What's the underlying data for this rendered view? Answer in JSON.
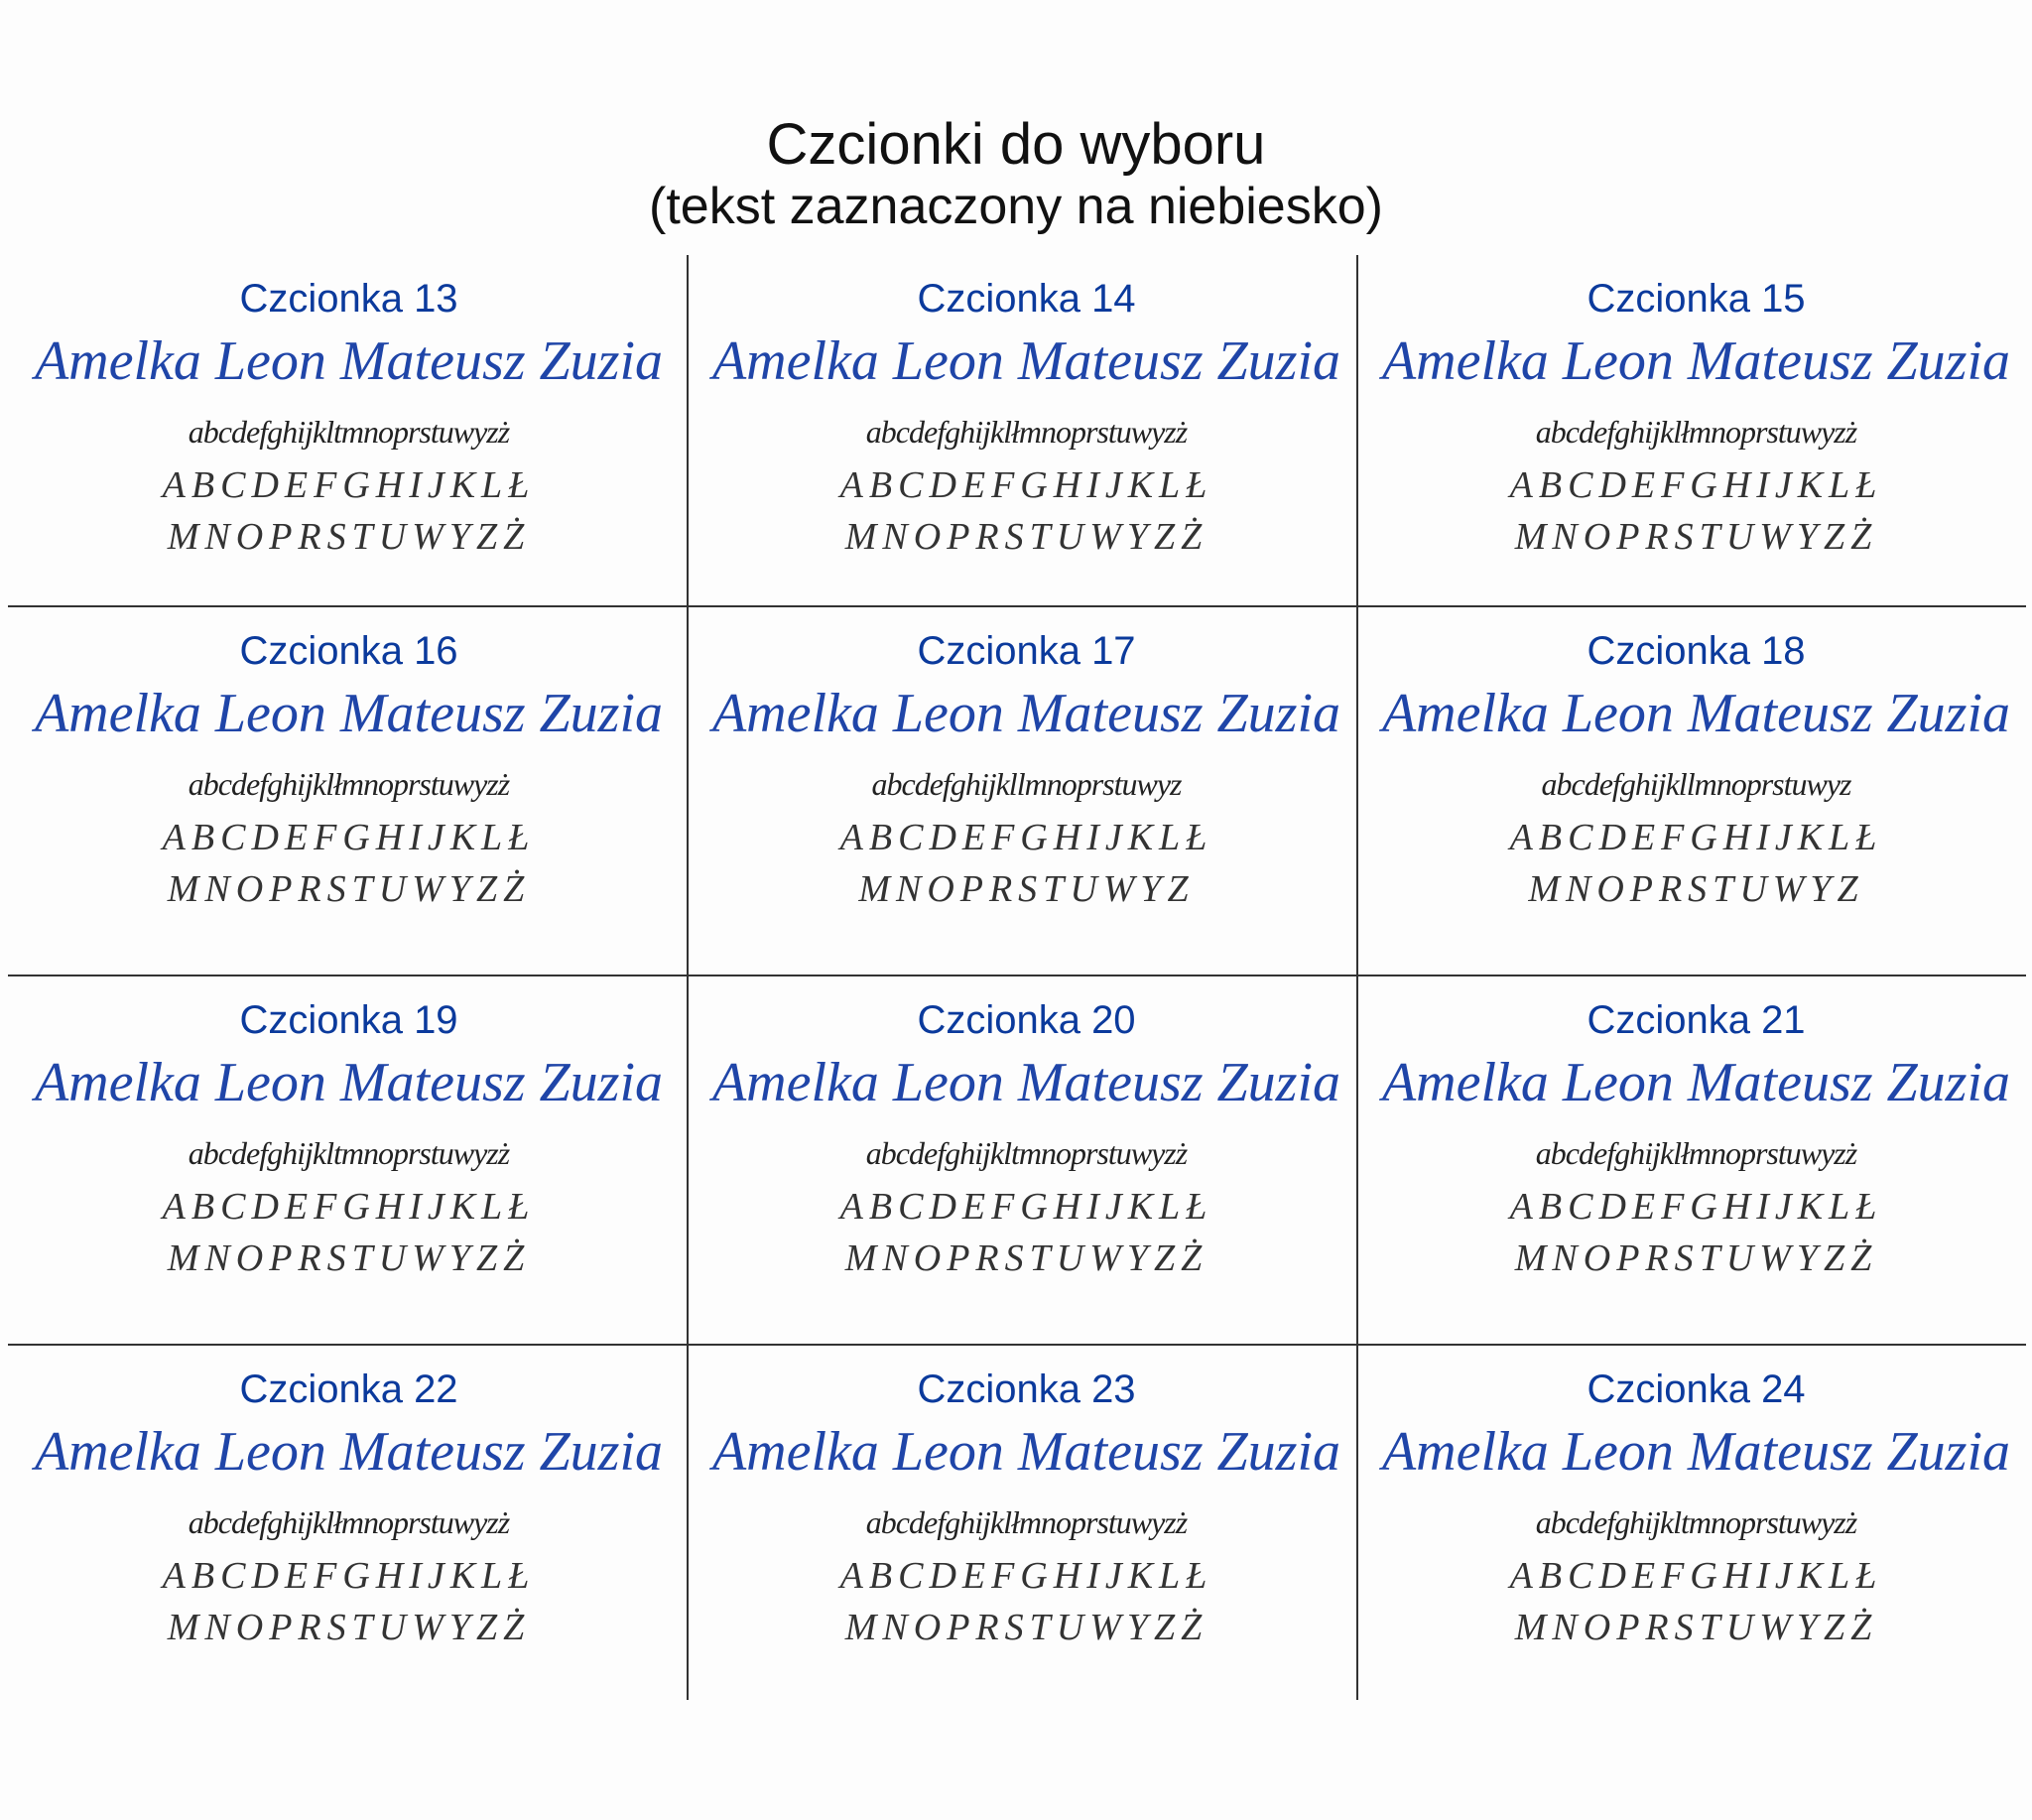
{
  "header": {
    "title": "Czcionki do wyboru",
    "subtitle": "(tekst zaznaczony na niebiesko)"
  },
  "accent_color": "#0b3a9c",
  "cells": [
    {
      "label": "Czcionka 13",
      "sample": "Amelka Leon Mateusz Zuzia",
      "lower": "abcdefghijkltmnoprstuwyzż",
      "upper1": "ABCDEFGHIJKLŁ",
      "upper2": "MNOPRSTUWYZŻ"
    },
    {
      "label": "Czcionka 14",
      "sample": "Amelka Leon Mateusz Zuzia",
      "lower": "abcdefghijklłmnoprstuwyzż",
      "upper1": "ABCDEFGHIJKLŁ",
      "upper2": "MNOPRSTUWYZŻ"
    },
    {
      "label": "Czcionka 15",
      "sample": "Amelka Leon Mateusz Zuzia",
      "lower": "abcdefghijklłmnoprstuwyzż",
      "upper1": "ABCDEFGHIJKLŁ",
      "upper2": "MNOPRSTUWYZŻ"
    },
    {
      "label": "Czcionka 16",
      "sample": "Amelka Leon Mateusz Zuzia",
      "lower": "abcdefghijklłmnoprstuwyzż",
      "upper1": "ABCDEFGHIJKLŁ",
      "upper2": "MNOPRSTUWYZŻ"
    },
    {
      "label": "Czcionka 17",
      "sample": "Amelka Leon Mateusz Zuzia",
      "lower": "abcdefghijkllmnoprstuwyz",
      "upper1": "ABCDEFGHIJKLŁ",
      "upper2": "MNOPRSTUWYZ"
    },
    {
      "label": "Czcionka 18",
      "sample": "Amelka Leon Mateusz Zuzia",
      "lower": "abcdefghijkllmnoprstuwyz",
      "upper1": "ABCDEFGHIJKLŁ",
      "upper2": "MNOPRSTUWYZ"
    },
    {
      "label": "Czcionka 19",
      "sample": "Amelka Leon Mateusz Zuzia",
      "lower": "abcdefghijkltmnoprstuwyzż",
      "upper1": "ABCDEFGHIJKLŁ",
      "upper2": "MNOPRSTUWYZŻ"
    },
    {
      "label": "Czcionka 20",
      "sample": "Amelka Leon Mateusz Zuzia",
      "lower": "abcdefghijkltmnoprstuwyzż",
      "upper1": "ABCDEFGHIJKLŁ",
      "upper2": "MNOPRSTUWYZŻ"
    },
    {
      "label": "Czcionka 21",
      "sample": "Amelka Leon Mateusz Zuzia",
      "lower": "abcdefghijklłmnoprstuwyzż",
      "upper1": "ABCDEFGHIJKLŁ",
      "upper2": "MNOPRSTUWYZŻ"
    },
    {
      "label": "Czcionka 22",
      "sample": "Amelka Leon Mateusz Zuzia",
      "lower": "abcdefghijklłmnoprstuwyzż",
      "upper1": "ABCDEFGHIJKLŁ",
      "upper2": "MNOPRSTUWYZŻ"
    },
    {
      "label": "Czcionka 23",
      "sample": "Amelka Leon Mateusz Zuzia",
      "lower": "abcdefghijklłmnoprstuwyzż",
      "upper1": "ABCDEFGHIJKLŁ",
      "upper2": "MNOPRSTUWYZŻ"
    },
    {
      "label": "Czcionka 24",
      "sample": "Amelka Leon Mateusz Zuzia",
      "lower": "abcdefghijkltmnoprstuwyzż",
      "upper1": "ABCDEFGHIJKLŁ",
      "upper2": "MNOPRSTUWYZŻ"
    }
  ]
}
